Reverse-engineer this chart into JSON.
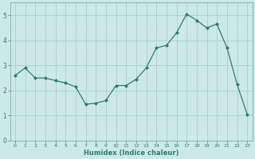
{
  "x": [
    0,
    1,
    2,
    3,
    4,
    5,
    6,
    7,
    8,
    9,
    10,
    11,
    12,
    13,
    14,
    15,
    16,
    17,
    18,
    19,
    20,
    21,
    22,
    23
  ],
  "y": [
    2.6,
    2.9,
    2.5,
    2.5,
    2.4,
    2.3,
    2.15,
    1.45,
    1.5,
    1.6,
    2.2,
    2.2,
    2.45,
    2.9,
    3.7,
    3.8,
    4.3,
    5.05,
    4.8,
    4.5,
    4.65,
    3.7,
    2.25,
    1.05
  ],
  "xlabel": "Humidex (Indice chaleur)",
  "xlim": [
    -0.5,
    23.5
  ],
  "ylim": [
    0,
    5.5
  ],
  "bg_color": "#cde8e8",
  "line_color": "#2d7d6e",
  "grid_color": "#aacece",
  "yticks": [
    0,
    1,
    2,
    3,
    4,
    5
  ],
  "xtick_labels": [
    "0",
    "1",
    "2",
    "3",
    "4",
    "5",
    "6",
    "7",
    "8",
    "9",
    "10",
    "11",
    "12",
    "13",
    "14",
    "15",
    "16",
    "17",
    "18",
    "19",
    "20",
    "21",
    "22",
    "23"
  ]
}
